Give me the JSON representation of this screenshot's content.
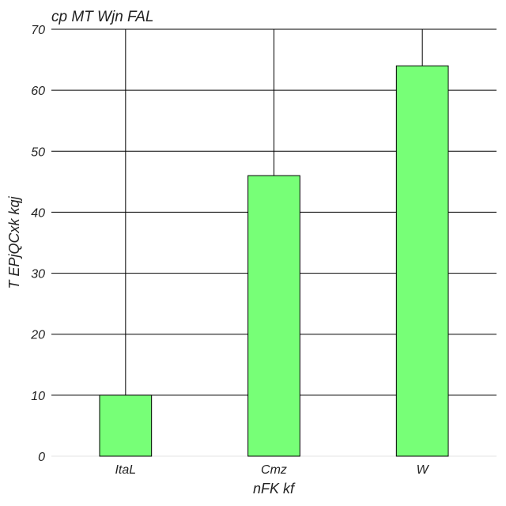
{
  "chart_data": {
    "type": "bar",
    "title": "cp MT Wjn FAL",
    "xlabel": "nFK kf",
    "ylabel": "T EPjQCxk kqj",
    "categories": [
      "ItaL",
      "Cmz",
      "W"
    ],
    "values": [
      10,
      46,
      64
    ],
    "ylim": [
      0,
      70
    ],
    "yticks": [
      0,
      10,
      20,
      30,
      40,
      50,
      60,
      70
    ],
    "ytick_labels": [
      "0",
      "10",
      "20",
      "30",
      "40",
      "50",
      "60",
      "70"
    ],
    "grid": true,
    "bar_color": "#77ff77",
    "edge_color": "#000000",
    "grid_color": "#000000"
  }
}
